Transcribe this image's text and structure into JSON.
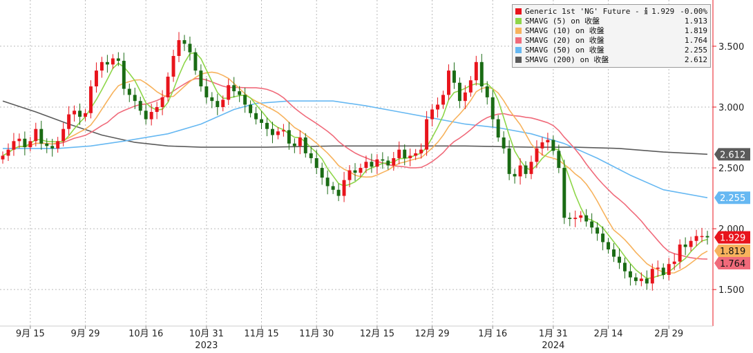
{
  "chart_data": {
    "type": "candlestick",
    "y_ticks": [
      "1.500",
      "2.000",
      "2.500",
      "3.000",
      "3.500"
    ],
    "y_tick_values": [
      1.5,
      2.0,
      2.5,
      3.0,
      3.5
    ],
    "ylim": [
      1.2,
      3.88
    ],
    "x_ticks": [
      {
        "label": "9月 15",
        "index": 5
      },
      {
        "label": "9月 29",
        "index": 15
      },
      {
        "label": "10月 16",
        "index": 26
      },
      {
        "label": "10月 31",
        "index": 37
      },
      {
        "label": "11月 15",
        "index": 47
      },
      {
        "label": "11月 30",
        "index": 57
      },
      {
        "label": "12月 15",
        "index": 68
      },
      {
        "label": "12月 29",
        "index": 78
      },
      {
        "label": "1月 16",
        "index": 89
      },
      {
        "label": "1月 31",
        "index": 100
      },
      {
        "label": "2月 14",
        "index": 110
      },
      {
        "label": "2月 29",
        "index": 121
      }
    ],
    "year_labels": [
      {
        "label": "2023",
        "index": 37
      },
      {
        "label": "2024",
        "index": 100
      }
    ],
    "colors": {
      "up": "#e8141c",
      "down": "#1a6b14",
      "sma5": "#8ed649",
      "sma10": "#f7b25c",
      "sma20": "#f06a7a",
      "sma50": "#66b8f2",
      "sma200": "#5a5a5a"
    },
    "closes": [
      2.6,
      2.65,
      2.72,
      2.74,
      2.67,
      2.72,
      2.82,
      2.7,
      2.68,
      2.66,
      2.72,
      2.82,
      2.94,
      2.97,
      2.92,
      2.95,
      3.17,
      3.3,
      3.37,
      3.35,
      3.4,
      3.38,
      3.15,
      3.1,
      3.05,
      2.97,
      2.9,
      2.96,
      3.0,
      3.08,
      3.25,
      3.42,
      3.55,
      3.52,
      3.45,
      3.3,
      3.17,
      3.08,
      3.05,
      3.0,
      3.06,
      3.18,
      3.13,
      3.1,
      3.02,
      2.95,
      2.9,
      2.87,
      2.82,
      2.77,
      2.8,
      2.81,
      2.7,
      2.68,
      2.75,
      2.62,
      2.58,
      2.5,
      2.42,
      2.35,
      2.32,
      2.27,
      2.4,
      2.48,
      2.46,
      2.5,
      2.55,
      2.51,
      2.57,
      2.56,
      2.52,
      2.58,
      2.65,
      2.58,
      2.6,
      2.62,
      2.65,
      2.9,
      2.98,
      3.02,
      3.1,
      3.3,
      3.2,
      3.05,
      3.12,
      3.22,
      3.37,
      3.17,
      3.08,
      2.9,
      2.75,
      2.66,
      2.45,
      2.43,
      2.52,
      2.45,
      2.55,
      2.66,
      2.71,
      2.73,
      2.64,
      2.5,
      2.09,
      2.08,
      2.09,
      2.11,
      2.06,
      2.01,
      1.96,
      1.89,
      1.83,
      1.77,
      1.72,
      1.65,
      1.6,
      1.57,
      1.59,
      1.55,
      1.67,
      1.68,
      1.62,
      1.71,
      1.73,
      1.87,
      1.85,
      1.9,
      1.94,
      1.94,
      1.929
    ],
    "sma200": [
      [
        0,
        3.05
      ],
      [
        6,
        2.96
      ],
      [
        12,
        2.86
      ],
      [
        18,
        2.77
      ],
      [
        24,
        2.71
      ],
      [
        30,
        2.68
      ],
      [
        36,
        2.67
      ],
      [
        48,
        2.67
      ],
      [
        60,
        2.68
      ],
      [
        72,
        2.68
      ],
      [
        84,
        2.68
      ],
      [
        96,
        2.67
      ],
      [
        104,
        2.67
      ],
      [
        112,
        2.66
      ],
      [
        120,
        2.63
      ],
      [
        128,
        2.612
      ]
    ],
    "sma50": [
      [
        0,
        2.66
      ],
      [
        10,
        2.66
      ],
      [
        16,
        2.68
      ],
      [
        22,
        2.72
      ],
      [
        30,
        2.78
      ],
      [
        36,
        2.86
      ],
      [
        42,
        2.98
      ],
      [
        46,
        3.03
      ],
      [
        52,
        3.05
      ],
      [
        60,
        3.05
      ],
      [
        66,
        3.01
      ],
      [
        72,
        2.96
      ],
      [
        78,
        2.91
      ],
      [
        84,
        2.86
      ],
      [
        90,
        2.83
      ],
      [
        96,
        2.78
      ],
      [
        102,
        2.7
      ],
      [
        108,
        2.58
      ],
      [
        114,
        2.44
      ],
      [
        120,
        2.32
      ],
      [
        128,
        2.255
      ]
    ],
    "legend": {
      "main": {
        "name": "Generic 1st 'NG' Future - 最新價",
        "value": "1.929",
        "change": "-0.00%"
      },
      "rows": [
        {
          "name": "SMAVG (5)  on 收盤",
          "value": "1.913"
        },
        {
          "name": "SMAVG (10)  on 收盤",
          "value": "1.819"
        },
        {
          "name": "SMAVG (20)  on 收盤",
          "value": "1.764"
        },
        {
          "name": "SMAVG (50)  on 收盤",
          "value": "2.255"
        },
        {
          "name": "SMAVG (200)  on 收盤",
          "value": "2.612"
        }
      ]
    },
    "right_tags": [
      {
        "label": "2.612",
        "value": 2.612,
        "bg": "#5a5a5a",
        "fg": "#ffffff"
      },
      {
        "label": "2.255",
        "value": 2.255,
        "bg": "#66b8f2",
        "fg": "#ffffff"
      },
      {
        "label": "1.929",
        "value": 1.929,
        "bg": "#e8141c",
        "fg": "#ffffff"
      },
      {
        "label": "1.819",
        "value": 1.819,
        "bg": "#f7b25c",
        "fg": "#111111"
      },
      {
        "label": "1.764",
        "value": 1.764,
        "bg": "#f06a7a",
        "fg": "#111111"
      }
    ]
  }
}
